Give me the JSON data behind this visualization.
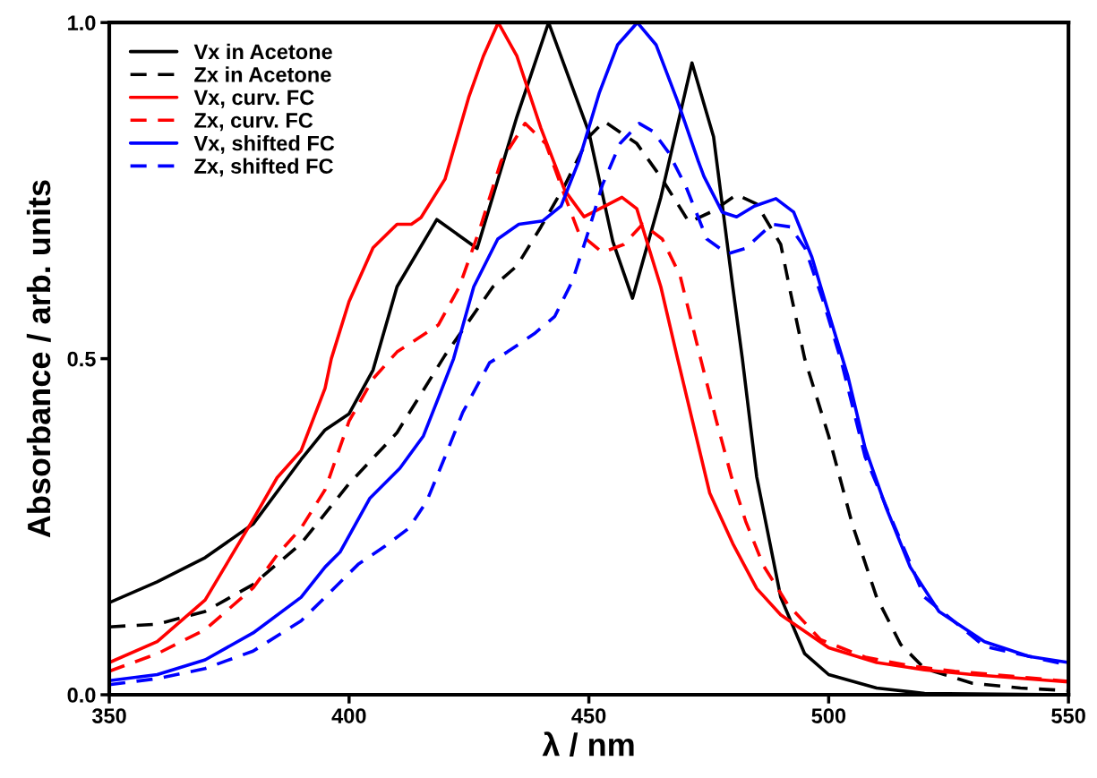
{
  "chart_data": {
    "type": "line",
    "xlabel": "λ / nm",
    "ylabel": "Absorbance / arb. units",
    "xlim": [
      350,
      550
    ],
    "xticks": [
      350,
      400,
      450,
      500,
      550
    ],
    "ylim": [
      0,
      1
    ],
    "yticks": [
      {
        "value": 0,
        "label": "0.0"
      },
      {
        "value": 0.5,
        "label": "0.5"
      },
      {
        "value": 1,
        "label": "1.0"
      }
    ],
    "grid": false,
    "legend": "top left",
    "marker": "none",
    "series": [
      {
        "name": "Vx in Acetone",
        "color": "#000000",
        "line_style": "solid",
        "x": [
          350,
          360,
          370,
          380,
          390,
          395,
          400,
          405,
          410,
          418.3,
          426.7,
          435,
          441.6,
          450,
          455,
          459.1,
          465,
          471.5,
          476,
          480,
          482,
          485,
          490,
          495,
          500,
          510,
          520,
          550
        ],
        "values": [
          0.137,
          0.168,
          0.204,
          0.254,
          0.35,
          0.394,
          0.418,
          0.483,
          0.607,
          0.707,
          0.664,
          0.86,
          1.0,
          0.837,
          0.674,
          0.59,
          0.74,
          0.94,
          0.83,
          0.607,
          0.5,
          0.324,
          0.145,
          0.061,
          0.03,
          0.01,
          0.002,
          0.0
        ]
      },
      {
        "name": "Zx in Acetone",
        "color": "#000000",
        "line_style": "dashed",
        "x": [
          350,
          360,
          370,
          380,
          390,
          400,
          410,
          420,
          430,
          435,
          440,
          445,
          450,
          453.2,
          460,
          465,
          470.9,
          476,
          480.8,
          485,
          490,
          492,
          495,
          500,
          505,
          510,
          515,
          520,
          530,
          540,
          550
        ],
        "values": [
          0.101,
          0.105,
          0.124,
          0.164,
          0.225,
          0.314,
          0.39,
          0.505,
          0.607,
          0.638,
          0.696,
          0.758,
          0.83,
          0.853,
          0.82,
          0.77,
          0.703,
          0.72,
          0.744,
          0.73,
          0.67,
          0.6,
          0.5,
          0.385,
          0.252,
          0.145,
          0.075,
          0.039,
          0.017,
          0.01,
          0.006
        ]
      },
      {
        "name": "Vx, curv. FC",
        "color": "#ff0000",
        "line_style": "solid",
        "x": [
          350,
          360,
          370,
          380,
          385,
          390,
          395,
          396.3,
          400,
          405,
          410,
          413,
          415,
          420,
          425,
          428,
          431.1,
          435,
          440,
          445,
          449,
          456.9,
          460,
          465,
          468.5,
          475.2,
          480,
          485,
          490,
          500,
          510,
          520,
          530,
          550
        ],
        "values": [
          0.048,
          0.079,
          0.141,
          0.261,
          0.323,
          0.363,
          0.456,
          0.5,
          0.585,
          0.665,
          0.7,
          0.7,
          0.71,
          0.767,
          0.89,
          0.95,
          1.0,
          0.95,
          0.843,
          0.75,
          0.711,
          0.74,
          0.723,
          0.607,
          0.5,
          0.3,
          0.225,
          0.158,
          0.119,
          0.07,
          0.048,
          0.037,
          0.03,
          0.019
        ]
      },
      {
        "name": "Zx, curv. FC",
        "color": "#ff0000",
        "line_style": "dashed",
        "x": [
          350,
          360,
          370,
          380,
          385,
          390,
          395,
          400,
          405,
          410,
          418.6,
          423,
          427.4,
          431.7,
          436.7,
          441,
          445.3,
          447.9,
          452.8,
          457.3,
          461.2,
          465.3,
          469,
          473.3,
          476.5,
          479.7,
          482.7,
          486.4,
          491.4,
          498.3,
          507.6,
          517,
          526.3,
          550
        ],
        "values": [
          0.035,
          0.061,
          0.097,
          0.159,
          0.208,
          0.248,
          0.305,
          0.407,
          0.47,
          0.51,
          0.55,
          0.607,
          0.696,
          0.794,
          0.85,
          0.82,
          0.736,
          0.687,
          0.658,
          0.67,
          0.7,
          0.678,
          0.624,
          0.5,
          0.41,
          0.325,
          0.258,
          0.192,
          0.135,
          0.082,
          0.056,
          0.043,
          0.035,
          0.02
        ]
      },
      {
        "name": "Vx, shifted FC",
        "color": "#0000ff",
        "line_style": "solid",
        "x": [
          350,
          360,
          370,
          380,
          390,
          395,
          398.1,
          404.3,
          410.6,
          415.5,
          418.7,
          421.8,
          426,
          431,
          435.4,
          440.4,
          444.2,
          447.9,
          452.2,
          456,
          460.1,
          464,
          468.5,
          472.8,
          474,
          477.8,
          480.8,
          484.5,
          489,
          492.7,
          496.5,
          500.2,
          504,
          507.6,
          512,
          517,
          523,
          532.5,
          541.8,
          550
        ],
        "values": [
          0.021,
          0.03,
          0.052,
          0.092,
          0.145,
          0.19,
          0.212,
          0.292,
          0.337,
          0.385,
          0.443,
          0.5,
          0.607,
          0.678,
          0.7,
          0.705,
          0.727,
          0.794,
          0.896,
          0.967,
          1.0,
          0.967,
          0.883,
          0.794,
          0.771,
          0.718,
          0.711,
          0.727,
          0.738,
          0.718,
          0.651,
          0.563,
          0.474,
          0.367,
          0.278,
          0.19,
          0.124,
          0.079,
          0.057,
          0.048
        ]
      },
      {
        "name": "Zx, shifted FC",
        "color": "#0000ff",
        "line_style": "dashed",
        "x": [
          350,
          360,
          370,
          380,
          390,
          395,
          401.9,
          407.5,
          412.5,
          416.2,
          420,
          423.7,
          429.3,
          433,
          438.6,
          442.9,
          446.6,
          449.8,
          452.8,
          456.5,
          460.5,
          463.4,
          466.6,
          470.3,
          474.6,
          478.9,
          482.6,
          488.2,
          492,
          495.1,
          498.9,
          502.6,
          507.6,
          520,
          532.5,
          550
        ],
        "values": [
          0.015,
          0.024,
          0.039,
          0.065,
          0.11,
          0.145,
          0.194,
          0.221,
          0.248,
          0.288,
          0.354,
          0.42,
          0.494,
          0.51,
          0.537,
          0.563,
          0.616,
          0.687,
          0.758,
          0.82,
          0.85,
          0.838,
          0.807,
          0.755,
          0.678,
          0.656,
          0.664,
          0.7,
          0.696,
          0.664,
          0.585,
          0.497,
          0.354,
          0.145,
          0.072,
          0.044
        ]
      }
    ]
  }
}
